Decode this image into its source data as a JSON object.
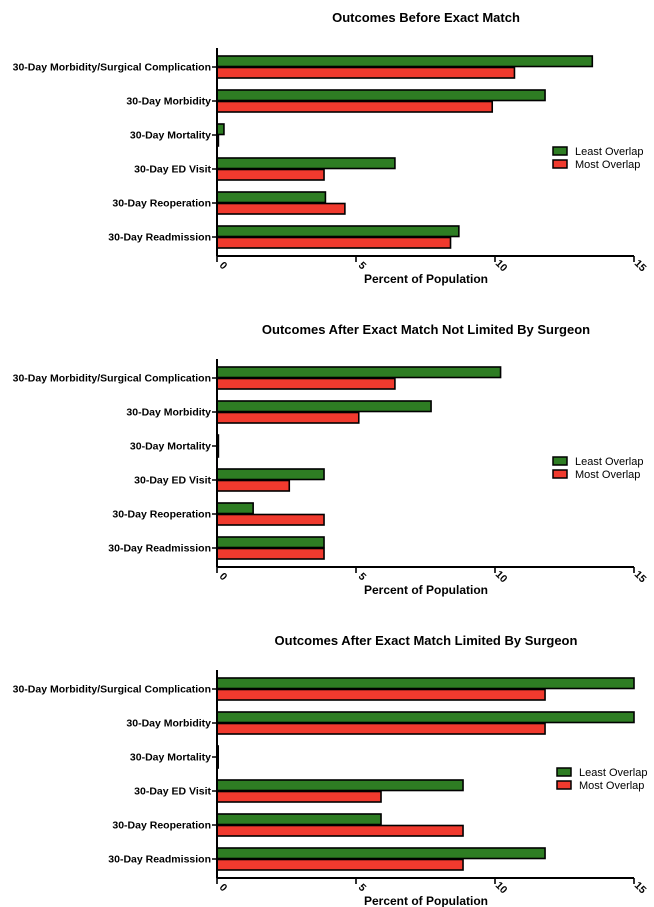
{
  "chart_data": [
    {
      "type": "bar",
      "orientation": "horizontal",
      "title": "Outcomes Before Exact Match",
      "xlabel": "Percent of Population",
      "ylabel": "",
      "xlim": [
        0,
        15
      ],
      "x_ticks": [
        "0",
        "5",
        "10",
        "15"
      ],
      "categories": [
        "30-Day Morbidity/Surgical Complication",
        "30-Day Morbidity",
        "30-Day Mortality",
        "30-Day ED Visit",
        "30-Day Reoperation",
        "30-Day Readmission"
      ],
      "series": [
        {
          "name": "Least Overlap",
          "color": "#2e7d23",
          "values": [
            13.5,
            11.8,
            0.25,
            6.4,
            3.9,
            8.7
          ]
        },
        {
          "name": "Most Overlap",
          "color": "#f03a2e",
          "values": [
            10.7,
            9.9,
            0.05,
            3.85,
            4.6,
            8.4
          ]
        }
      ],
      "grid": false,
      "legend_position": "right"
    },
    {
      "type": "bar",
      "orientation": "horizontal",
      "title": "Outcomes After Exact Match Not Limited By Surgeon",
      "xlabel": "Percent of Population",
      "ylabel": "",
      "xlim": [
        0,
        15
      ],
      "x_ticks": [
        "0",
        "5",
        "10",
        "15"
      ],
      "categories": [
        "30-Day Morbidity/Surgical Complication",
        "30-Day Morbidity",
        "30-Day Mortality",
        "30-Day ED Visit",
        "30-Day Reoperation",
        "30-Day Readmission"
      ],
      "series": [
        {
          "name": "Least Overlap",
          "color": "#2e7d23",
          "values": [
            10.2,
            7.7,
            0.05,
            3.85,
            1.3,
            3.85
          ]
        },
        {
          "name": "Most Overlap",
          "color": "#f03a2e",
          "values": [
            6.4,
            5.1,
            0.05,
            2.6,
            3.85,
            3.85
          ]
        }
      ],
      "grid": false,
      "legend_position": "right"
    },
    {
      "type": "bar",
      "orientation": "horizontal",
      "title": "Outcomes After Exact Match Limited By Surgeon",
      "xlabel": "Percent of Population",
      "ylabel": "",
      "xlim": [
        0,
        15
      ],
      "x_ticks": [
        "0",
        "5",
        "10",
        "15"
      ],
      "categories": [
        "30-Day Morbidity/Surgical Complication",
        "30-Day Morbidity",
        "30-Day Mortality",
        "30-Day ED Visit",
        "30-Day Reoperation",
        "30-Day Readmission"
      ],
      "series": [
        {
          "name": "Least Overlap",
          "color": "#2e7d23",
          "values": [
            15.0,
            15.0,
            0.0,
            8.85,
            5.9,
            11.8
          ]
        },
        {
          "name": "Most Overlap",
          "color": "#f03a2e",
          "values": [
            11.8,
            11.8,
            0.0,
            5.9,
            8.85,
            8.85
          ]
        }
      ],
      "grid": false,
      "legend_position": "right"
    }
  ]
}
